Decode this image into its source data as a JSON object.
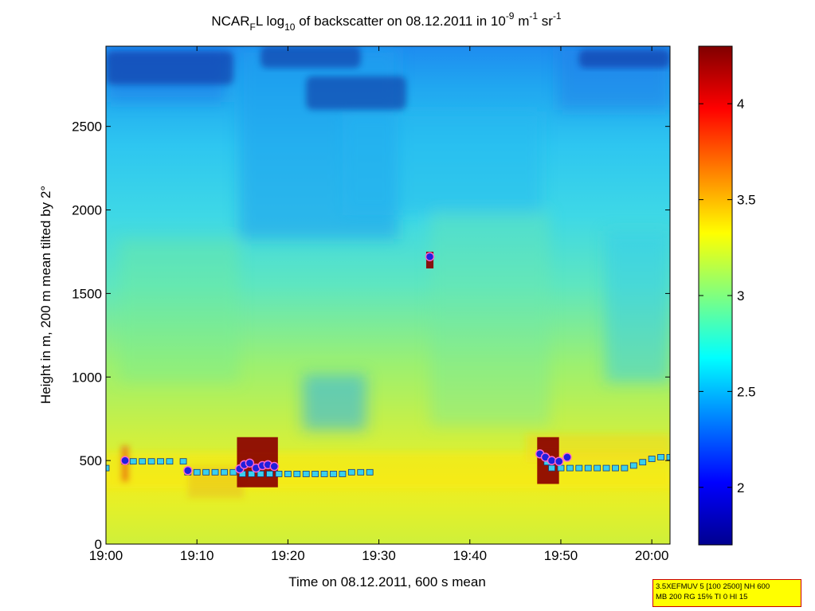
{
  "title": {
    "prefix": "NCAR",
    "sub_f": "F",
    "mid1": "L log",
    "sub_10": "10",
    "mid2": " of backscatter on 08.12.2011 in 10",
    "sup_neg9": "-9",
    "mid3": " m",
    "sup_neg1a": "-1",
    "mid4": " sr",
    "sup_neg1b": "-1"
  },
  "info_box": {
    "line1": "3.5XEFMUV 5 [100 2500] NH 600",
    "line2": "MB 200 RG 15% TI 0 HI 15"
  },
  "colors": {
    "ground": "#cff03a",
    "aerosol_layer": "#f2ed1e",
    "mid_air": "#5ee6c0",
    "upper_air": "#2ec6f0",
    "top_air": "#1e90f0",
    "dark_patch": "#0a2a9a",
    "cloud_red": "#8b0000",
    "marker_cyan": "#39d0ee",
    "marker_blue": "#2020dd"
  },
  "chart_data": {
    "type": "heatmap",
    "title": "NCAR_F L log_10 of backscatter on 08.12.2011 in 10^-9 m^-1 sr^-1",
    "xlabel": "Time on 08.12.2011, 600 s mean",
    "ylabel": "Height in m, 200 m mean tilted by 2°",
    "x_range_min": [
      0,
      62
    ],
    "y_range_m": [
      0,
      2980
    ],
    "x_ticks": [
      {
        "label": "19:00",
        "min": 0
      },
      {
        "label": "19:10",
        "min": 10
      },
      {
        "label": "19:20",
        "min": 20
      },
      {
        "label": "19:30",
        "min": 30
      },
      {
        "label": "19:40",
        "min": 40
      },
      {
        "label": "19:50",
        "min": 50
      },
      {
        "label": "20:00",
        "min": 60
      }
    ],
    "y_ticks": [
      0,
      500,
      1000,
      1500,
      2000,
      2500
    ],
    "colorbar": {
      "range": [
        1.7,
        4.3
      ],
      "ticks": [
        2,
        2.5,
        3,
        3.5,
        4
      ],
      "colormap": "jet"
    },
    "dark_regions": [
      {
        "min_from": 22,
        "min_to": 33,
        "h_from": 2600,
        "h_to": 2800
      },
      {
        "min_from": 17,
        "min_to": 28,
        "h_from": 2850,
        "h_to": 2980
      },
      {
        "min_from": 0,
        "min_to": 14,
        "h_from": 2750,
        "h_to": 2950
      },
      {
        "min_from": 52,
        "min_to": 62,
        "h_from": 2850,
        "h_to": 2960
      }
    ],
    "cloud_regions": [
      {
        "min_from": 14.4,
        "min_to": 18.9,
        "h_from": 340,
        "h_to": 640
      },
      {
        "min_from": 47.4,
        "min_to": 49.8,
        "h_from": 360,
        "h_to": 640
      },
      {
        "min_from": 35.2,
        "min_to": 36.0,
        "h_from": 1650,
        "h_to": 1750
      }
    ],
    "series": [
      {
        "name": "",
        "points": [
          [
            0,
            455
          ],
          [
            2.1,
            495
          ],
          [
            3,
            495
          ],
          [
            4,
            495
          ],
          [
            5,
            495
          ],
          [
            6,
            495
          ],
          [
            7,
            495
          ],
          [
            8.5,
            495
          ],
          [
            9,
            430
          ],
          [
            10,
            430
          ],
          [
            11,
            430
          ],
          [
            12,
            430
          ],
          [
            13,
            430
          ],
          [
            14,
            430
          ],
          [
            15,
            420
          ],
          [
            16,
            420
          ],
          [
            17,
            420
          ],
          [
            18,
            420
          ],
          [
            19,
            420
          ],
          [
            20,
            420
          ],
          [
            21,
            420
          ],
          [
            22,
            420
          ],
          [
            23,
            420
          ],
          [
            24,
            420
          ],
          [
            25,
            420
          ],
          [
            26,
            420
          ],
          [
            27,
            430
          ],
          [
            28,
            430
          ],
          [
            29,
            430
          ],
          [
            48,
            530
          ],
          [
            48.5,
            490
          ],
          [
            49,
            455
          ],
          [
            50,
            455
          ],
          [
            51,
            455
          ],
          [
            52,
            455
          ],
          [
            53,
            455
          ],
          [
            54,
            455
          ],
          [
            55,
            455
          ],
          [
            56,
            455
          ],
          [
            57,
            455
          ],
          [
            58,
            470
          ],
          [
            59,
            490
          ],
          [
            60,
            510
          ],
          [
            61,
            520
          ],
          [
            62,
            520
          ]
        ]
      },
      {
        "name": "",
        "points": [
          [
            2.1,
            500
          ],
          [
            9,
            440
          ],
          [
            14.7,
            450
          ],
          [
            15.2,
            475
          ],
          [
            15.8,
            485
          ],
          [
            16.5,
            455
          ],
          [
            17.2,
            470
          ],
          [
            17.8,
            475
          ],
          [
            18.5,
            465
          ],
          [
            35.6,
            1720
          ],
          [
            47.7,
            540
          ],
          [
            48.3,
            520
          ],
          [
            49,
            500
          ],
          [
            49.8,
            495
          ],
          [
            50.7,
            520
          ]
        ]
      }
    ]
  }
}
